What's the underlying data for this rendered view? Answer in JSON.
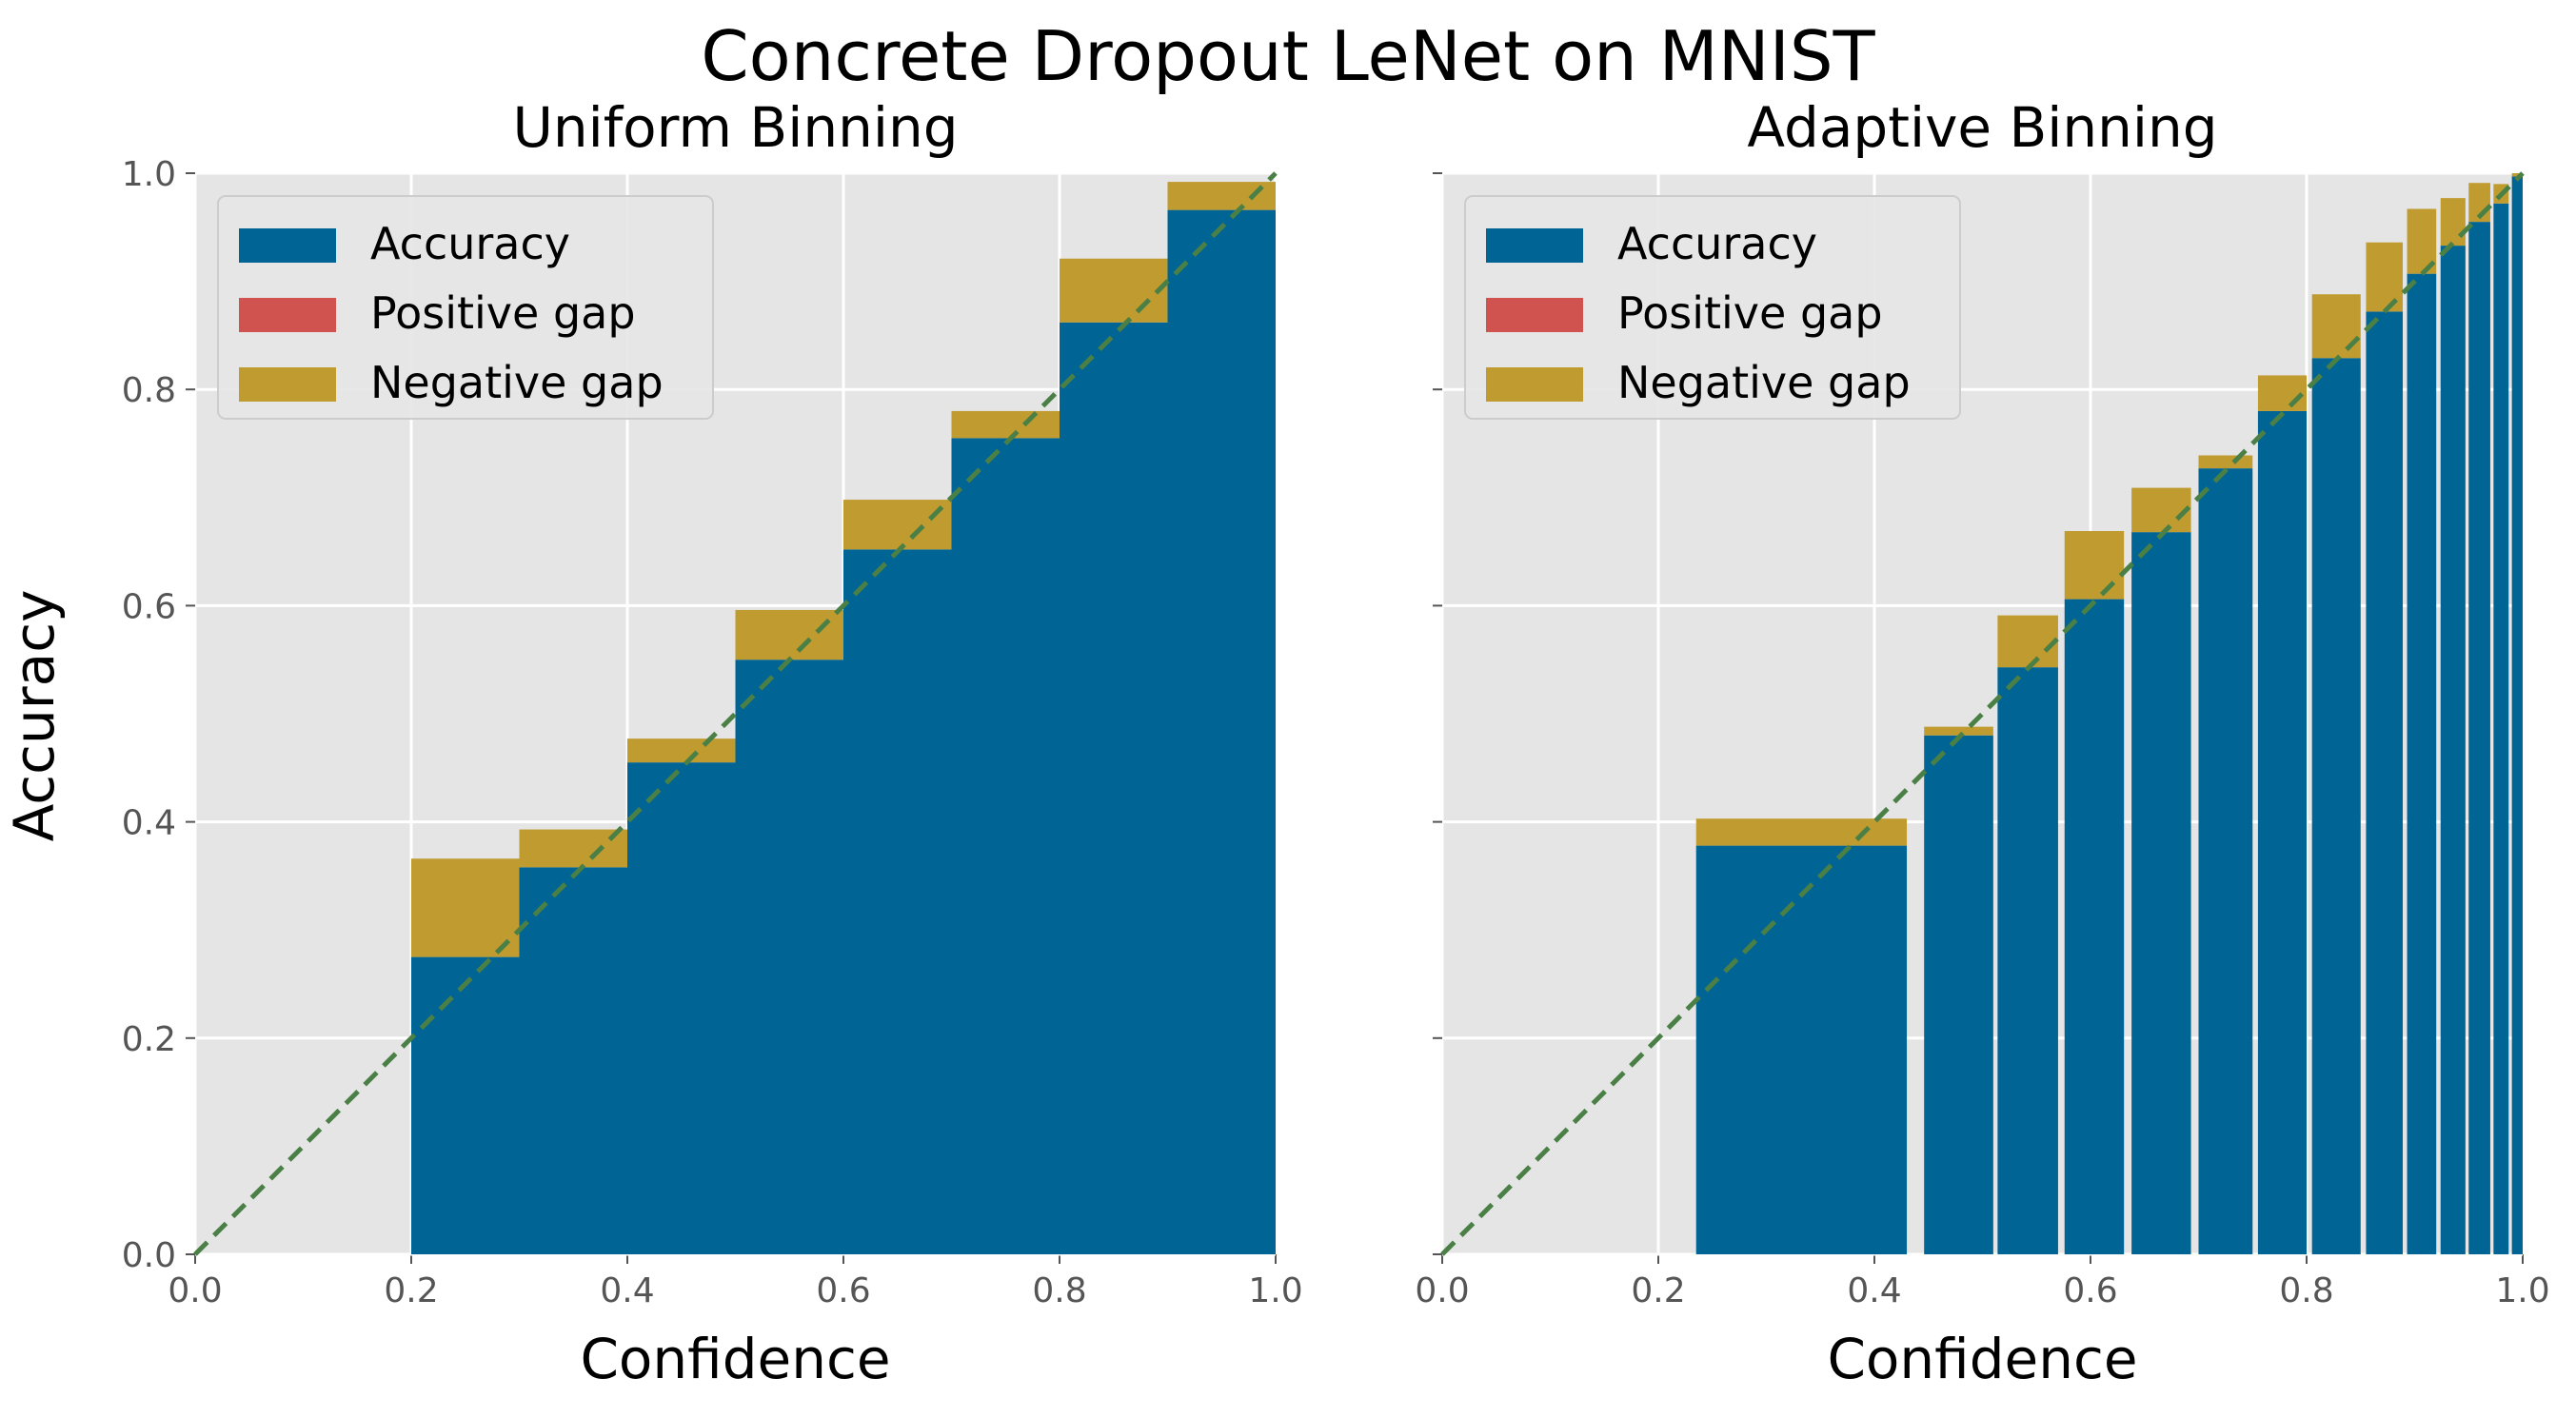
{
  "chart_data": {
    "title": "Concrete Dropout LeNet on MNIST",
    "ylabel": "Accuracy",
    "legend": [
      "Accuracy",
      "Positive gap",
      "Negative gap"
    ],
    "colors": {
      "accuracy": "#006494",
      "positive_gap": "#d1534f",
      "negative_gap": "#c09b30",
      "diagonal": "#4a7f46",
      "background": "#e5e5e5",
      "grid": "#ffffff"
    },
    "panels": [
      {
        "type": "bar",
        "title": "Uniform Binning",
        "xlabel": "Confidence",
        "xlim": [
          0,
          1
        ],
        "ylim": [
          0,
          1
        ],
        "xticks": [
          "0.0",
          "0.2",
          "0.4",
          "0.6",
          "0.8",
          "1.0"
        ],
        "yticks": [
          "0.0",
          "0.2",
          "0.4",
          "0.6",
          "0.8",
          "1.0"
        ],
        "show_ytick_labels": true,
        "legend_position": "upper-left",
        "bins": [
          {
            "left": 0.2,
            "right": 0.3,
            "accuracy": 0.275,
            "confidence": 0.366
          },
          {
            "left": 0.3,
            "right": 0.4,
            "accuracy": 0.358,
            "confidence": 0.393
          },
          {
            "left": 0.4,
            "right": 0.5,
            "accuracy": 0.455,
            "confidence": 0.477
          },
          {
            "left": 0.5,
            "right": 0.6,
            "accuracy": 0.55,
            "confidence": 0.596
          },
          {
            "left": 0.6,
            "right": 0.7,
            "accuracy": 0.652,
            "confidence": 0.698
          },
          {
            "left": 0.7,
            "right": 0.8,
            "accuracy": 0.755,
            "confidence": 0.78
          },
          {
            "left": 0.8,
            "right": 0.9,
            "accuracy": 0.862,
            "confidence": 0.921
          },
          {
            "left": 0.9,
            "right": 1.0,
            "accuracy": 0.966,
            "confidence": 0.992
          }
        ]
      },
      {
        "type": "bar",
        "title": "Adaptive Binning",
        "xlabel": "Confidence",
        "xlim": [
          0,
          1
        ],
        "ylim": [
          0,
          1
        ],
        "xticks": [
          "0.0",
          "0.2",
          "0.4",
          "0.6",
          "0.8",
          "1.0"
        ],
        "yticks": [
          "0.0",
          "0.2",
          "0.4",
          "0.6",
          "0.8",
          "1.0"
        ],
        "show_ytick_labels": false,
        "legend_position": "upper-left",
        "bins": [
          {
            "left": 0.235,
            "right": 0.43,
            "accuracy": 0.378,
            "confidence": 0.403
          },
          {
            "left": 0.446,
            "right": 0.51,
            "accuracy": 0.48,
            "confidence": 0.488
          },
          {
            "left": 0.514,
            "right": 0.57,
            "accuracy": 0.543,
            "confidence": 0.591
          },
          {
            "left": 0.576,
            "right": 0.631,
            "accuracy": 0.606,
            "confidence": 0.669
          },
          {
            "left": 0.638,
            "right": 0.693,
            "accuracy": 0.668,
            "confidence": 0.709
          },
          {
            "left": 0.7,
            "right": 0.75,
            "accuracy": 0.727,
            "confidence": 0.739
          },
          {
            "left": 0.755,
            "right": 0.8,
            "accuracy": 0.78,
            "confidence": 0.813
          },
          {
            "left": 0.805,
            "right": 0.85,
            "accuracy": 0.829,
            "confidence": 0.888
          },
          {
            "left": 0.855,
            "right": 0.889,
            "accuracy": 0.872,
            "confidence": 0.936
          },
          {
            "left": 0.893,
            "right": 0.92,
            "accuracy": 0.907,
            "confidence": 0.967
          },
          {
            "left": 0.924,
            "right": 0.947,
            "accuracy": 0.933,
            "confidence": 0.977
          },
          {
            "left": 0.95,
            "right": 0.97,
            "accuracy": 0.955,
            "confidence": 0.991
          },
          {
            "left": 0.973,
            "right": 0.987,
            "accuracy": 0.972,
            "confidence": 0.99
          },
          {
            "left": 0.99,
            "right": 1.0,
            "accuracy": 0.997,
            "confidence": 1.0
          }
        ]
      }
    ]
  }
}
